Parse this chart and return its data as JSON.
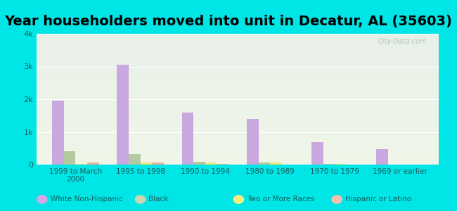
{
  "title": "Year householders moved into unit in Decatur, AL (35603)",
  "categories": [
    "1999 to March\n2000",
    "1995 to 1998",
    "1990 to 1994",
    "1980 to 1989",
    "1970 to 1979",
    "1969 or earlier"
  ],
  "series": {
    "White Non-Hispanic": [
      1950,
      3050,
      1600,
      1400,
      680,
      480
    ],
    "Black": [
      400,
      330,
      80,
      60,
      30,
      0
    ],
    "Two or More Races": [
      30,
      60,
      60,
      60,
      30,
      0
    ],
    "Hispanic or Latino": [
      60,
      60,
      30,
      0,
      0,
      0
    ]
  },
  "colors": {
    "White Non-Hispanic": "#c9a8e0",
    "Black": "#b5c9a0",
    "Two or More Races": "#f0e87a",
    "Hispanic or Latino": "#f0b0a0"
  },
  "legend_colors": {
    "White Non-Hispanic": "#d4a8e8",
    "Black": "#c8d8b0",
    "Two or More Races": "#f5f080",
    "Hispanic or Latino": "#f5c0b0"
  },
  "ylim": [
    0,
    4000
  ],
  "yticks": [
    0,
    1000,
    2000,
    3000,
    4000
  ],
  "ytick_labels": [
    "0",
    "1k",
    "2k",
    "3k",
    "4k"
  ],
  "background_color": "#00e5e5",
  "plot_bg_top": "#e8f0e8",
  "plot_bg_bottom": "#f0f5e8",
  "bar_width": 0.18,
  "title_fontsize": 14,
  "watermark": "City-Data.com"
}
